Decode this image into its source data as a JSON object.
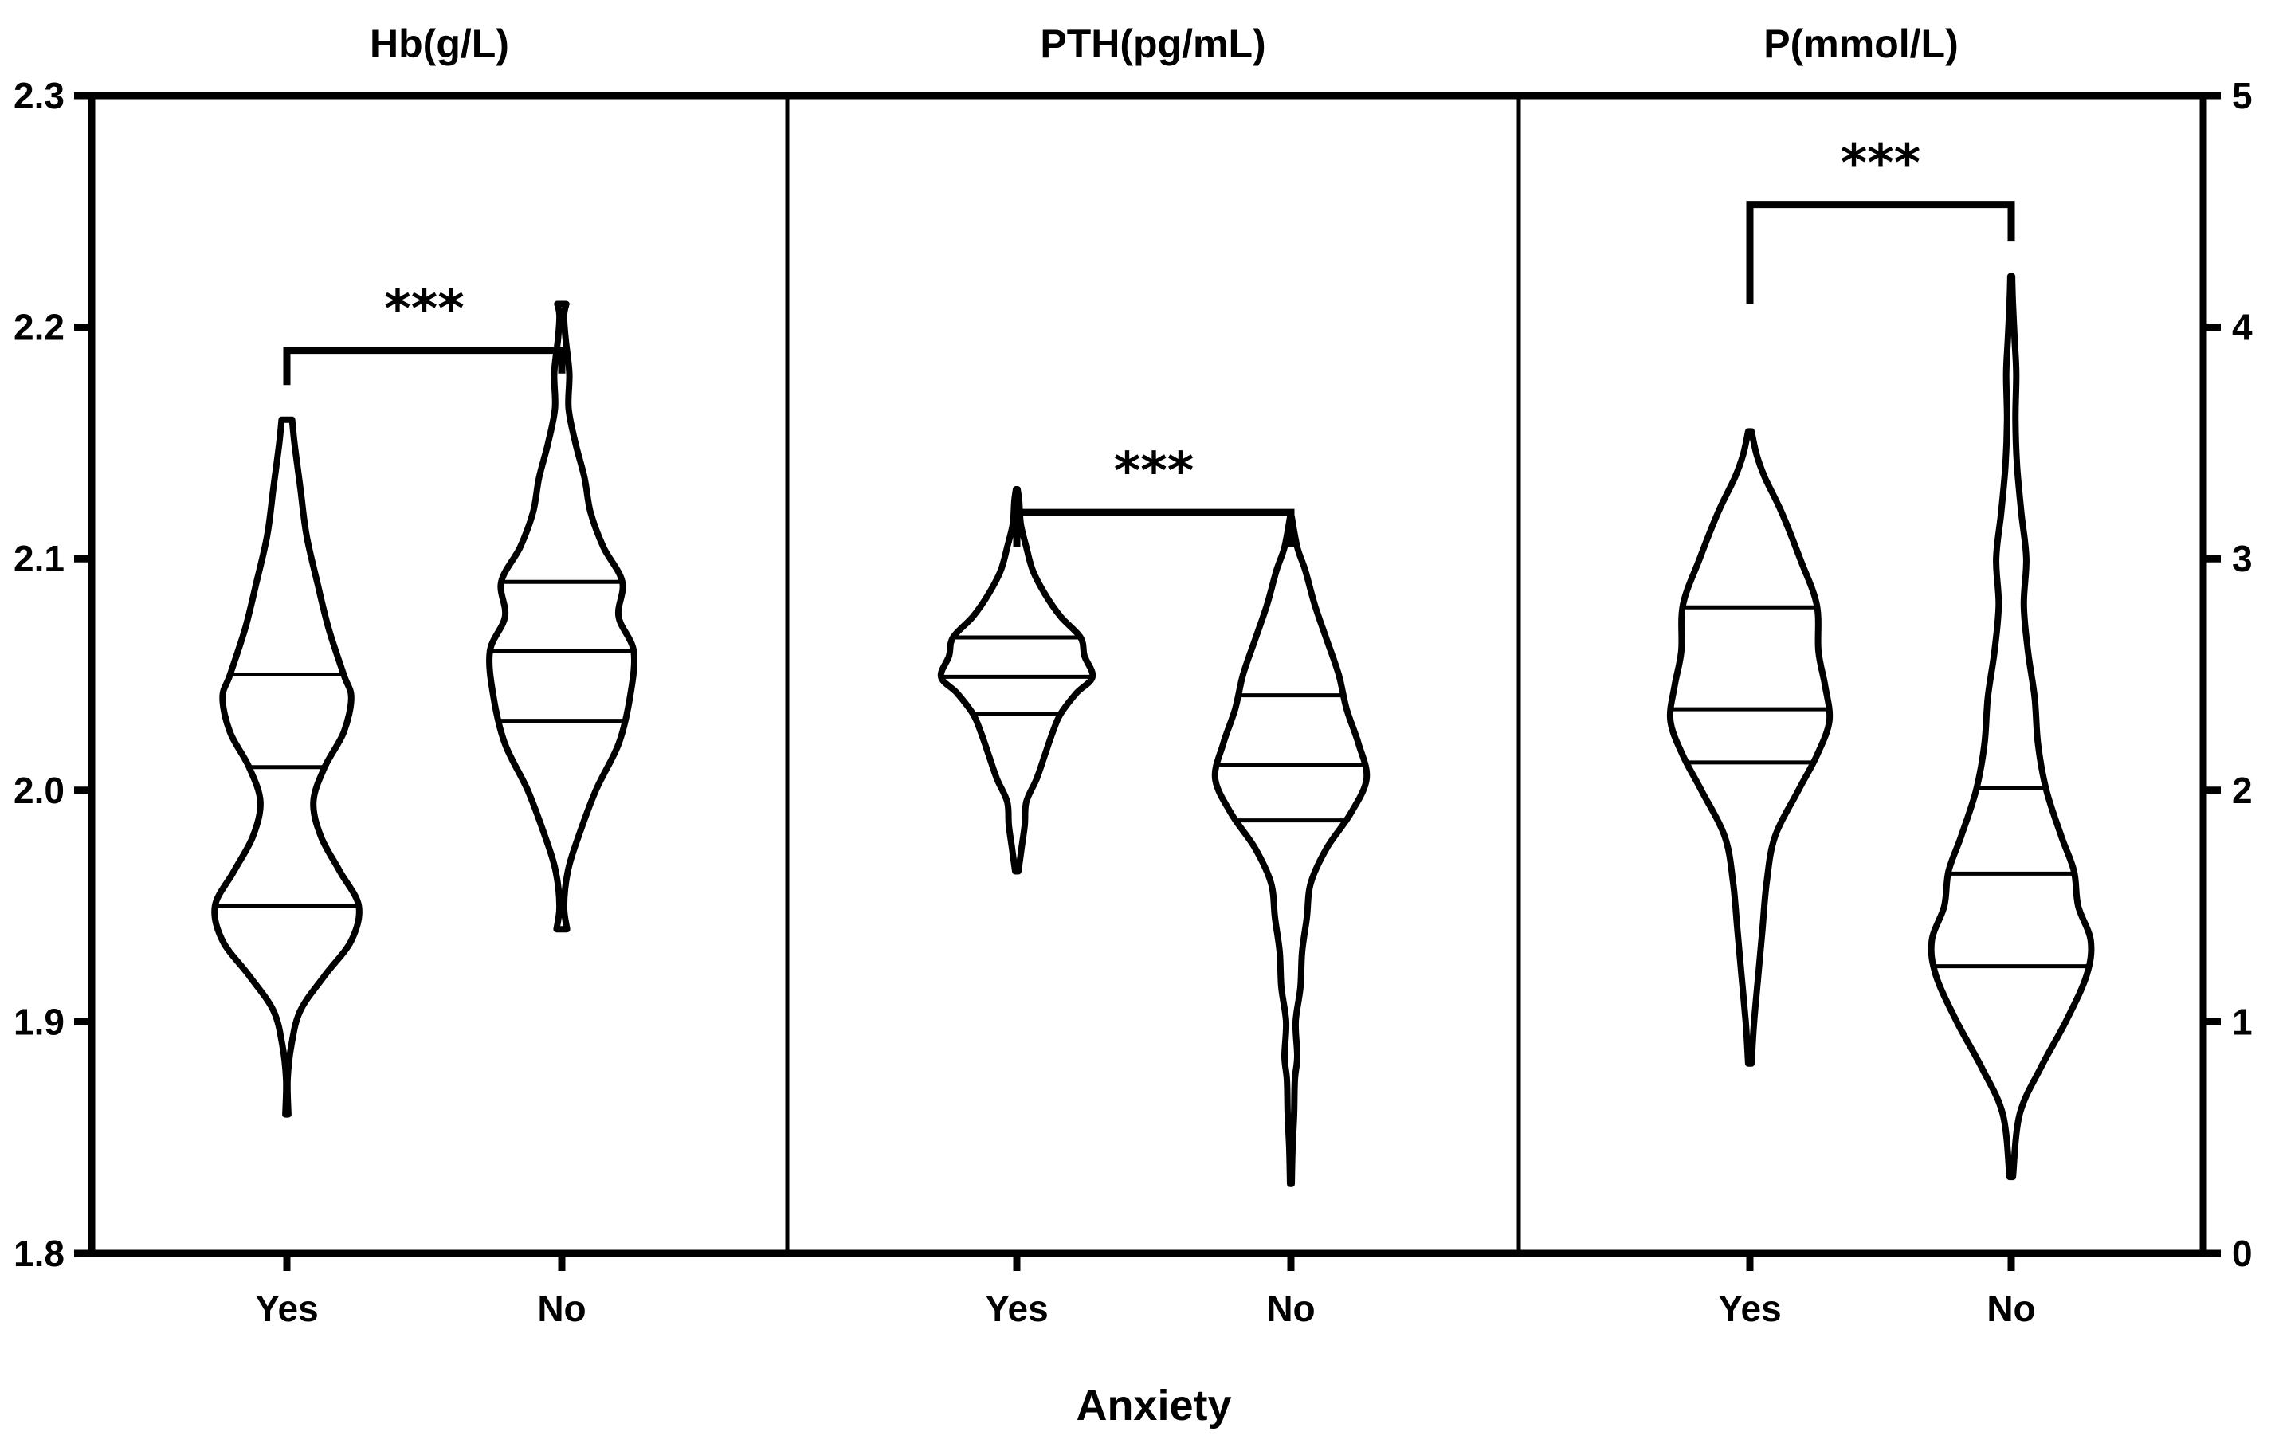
{
  "chart_data": {
    "type": "violin",
    "x_axis_title": "Anxiety",
    "groups": [
      "Yes",
      "No"
    ],
    "left_axis": {
      "min": 1.8,
      "max": 2.3,
      "ticks": [
        "1.8",
        "1.9",
        "2.0",
        "2.1",
        "2.2",
        "2.3"
      ]
    },
    "right_axis": {
      "min": 0,
      "max": 5,
      "ticks": [
        "0",
        "1",
        "2",
        "3",
        "4",
        "5"
      ]
    },
    "panels": [
      {
        "title": "Hb(g/L)",
        "axis": "left",
        "significance": "***",
        "bracket_top": 2.19,
        "bracket_legs": [
          2.175,
          2.18
        ],
        "violins": [
          {
            "group": "Yes",
            "min": 1.86,
            "max": 2.16,
            "q1": 1.95,
            "median": 2.01,
            "q3": 2.05,
            "profile": [
              [
                1.86,
                0.02
              ],
              [
                1.875,
                0.01
              ],
              [
                1.89,
                0.06
              ],
              [
                1.905,
                0.18
              ],
              [
                1.92,
                0.5
              ],
              [
                1.935,
                0.85
              ],
              [
                1.95,
                0.95
              ],
              [
                1.965,
                0.7
              ],
              [
                1.98,
                0.45
              ],
              [
                1.995,
                0.35
              ],
              [
                2.01,
                0.5
              ],
              [
                2.025,
                0.75
              ],
              [
                2.04,
                0.85
              ],
              [
                2.05,
                0.75
              ],
              [
                2.07,
                0.55
              ],
              [
                2.09,
                0.4
              ],
              [
                2.11,
                0.26
              ],
              [
                2.13,
                0.18
              ],
              [
                2.15,
                0.1
              ],
              [
                2.16,
                0.07
              ]
            ]
          },
          {
            "group": "No",
            "min": 1.94,
            "max": 2.21,
            "q1": 2.03,
            "median": 2.06,
            "q3": 2.09,
            "profile": [
              [
                1.94,
                0.07
              ],
              [
                1.95,
                0.03
              ],
              [
                1.965,
                0.08
              ],
              [
                1.98,
                0.22
              ],
              [
                2.0,
                0.45
              ],
              [
                2.02,
                0.75
              ],
              [
                2.04,
                0.9
              ],
              [
                2.06,
                0.95
              ],
              [
                2.075,
                0.75
              ],
              [
                2.09,
                0.8
              ],
              [
                2.105,
                0.55
              ],
              [
                2.12,
                0.38
              ],
              [
                2.135,
                0.3
              ],
              [
                2.15,
                0.18
              ],
              [
                2.165,
                0.09
              ],
              [
                2.18,
                0.1
              ],
              [
                2.195,
                0.05
              ],
              [
                2.205,
                0.03
              ],
              [
                2.21,
                0.06
              ]
            ]
          }
        ]
      },
      {
        "title": "PTH(pg/mL)",
        "axis": "left",
        "significance": "***",
        "bracket_top": 2.12,
        "bracket_legs": [
          2.105,
          2.105
        ],
        "violins": [
          {
            "group": "Yes",
            "min": 1.965,
            "max": 2.13,
            "q1": 2.033,
            "median": 2.049,
            "q3": 2.066,
            "profile": [
              [
                1.965,
                0.02
              ],
              [
                1.975,
                0.06
              ],
              [
                1.985,
                0.1
              ],
              [
                1.995,
                0.12
              ],
              [
                2.005,
                0.25
              ],
              [
                2.015,
                0.35
              ],
              [
                2.025,
                0.45
              ],
              [
                2.033,
                0.55
              ],
              [
                2.042,
                0.75
              ],
              [
                2.049,
                0.95
              ],
              [
                2.058,
                0.85
              ],
              [
                2.066,
                0.8
              ],
              [
                2.075,
                0.55
              ],
              [
                2.085,
                0.35
              ],
              [
                2.095,
                0.2
              ],
              [
                2.105,
                0.12
              ],
              [
                2.115,
                0.05
              ],
              [
                2.125,
                0.03
              ],
              [
                2.13,
                0.01
              ]
            ]
          },
          {
            "group": "No",
            "min": 1.83,
            "max": 2.118,
            "q1": 1.987,
            "median": 2.011,
            "q3": 2.041,
            "profile": [
              [
                1.83,
                0.01
              ],
              [
                1.845,
                0.02
              ],
              [
                1.86,
                0.04
              ],
              [
                1.875,
                0.05
              ],
              [
                1.885,
                0.08
              ],
              [
                1.9,
                0.06
              ],
              [
                1.915,
                0.12
              ],
              [
                1.93,
                0.14
              ],
              [
                1.945,
                0.2
              ],
              [
                1.96,
                0.25
              ],
              [
                1.975,
                0.45
              ],
              [
                1.99,
                0.75
              ],
              [
                2.005,
                0.95
              ],
              [
                2.02,
                0.85
              ],
              [
                2.035,
                0.7
              ],
              [
                2.05,
                0.6
              ],
              [
                2.065,
                0.45
              ],
              [
                2.08,
                0.3
              ],
              [
                2.095,
                0.18
              ],
              [
                2.105,
                0.08
              ],
              [
                2.118,
                0.01
              ]
            ]
          }
        ]
      },
      {
        "title": "P(mmol/L)",
        "axis": "right",
        "significance": "***",
        "bracket_top": 4.53,
        "bracket_legs": [
          4.1,
          4.37
        ],
        "violins": [
          {
            "group": "Yes",
            "min": 0.82,
            "max": 3.55,
            "q1": 2.12,
            "median": 2.35,
            "q3": 2.79,
            "profile": [
              [
                0.82,
                0.02
              ],
              [
                1.0,
                0.05
              ],
              [
                1.2,
                0.1
              ],
              [
                1.4,
                0.15
              ],
              [
                1.6,
                0.2
              ],
              [
                1.8,
                0.3
              ],
              [
                2.0,
                0.58
              ],
              [
                2.15,
                0.8
              ],
              [
                2.3,
                0.95
              ],
              [
                2.45,
                0.9
              ],
              [
                2.6,
                0.82
              ],
              [
                2.8,
                0.8
              ],
              [
                3.0,
                0.6
              ],
              [
                3.2,
                0.38
              ],
              [
                3.35,
                0.18
              ],
              [
                3.45,
                0.08
              ],
              [
                3.55,
                0.02
              ]
            ]
          },
          {
            "group": "No",
            "min": 0.33,
            "max": 4.22,
            "q1": 1.24,
            "median": 1.64,
            "q3": 2.01,
            "profile": [
              [
                0.33,
                0.02
              ],
              [
                0.6,
                0.1
              ],
              [
                0.8,
                0.35
              ],
              [
                1.0,
                0.65
              ],
              [
                1.2,
                0.9
              ],
              [
                1.35,
                0.95
              ],
              [
                1.5,
                0.8
              ],
              [
                1.65,
                0.75
              ],
              [
                1.8,
                0.6
              ],
              [
                2.0,
                0.42
              ],
              [
                2.2,
                0.32
              ],
              [
                2.4,
                0.28
              ],
              [
                2.6,
                0.2
              ],
              [
                2.8,
                0.15
              ],
              [
                3.0,
                0.18
              ],
              [
                3.2,
                0.12
              ],
              [
                3.4,
                0.07
              ],
              [
                3.6,
                0.05
              ],
              [
                3.8,
                0.06
              ],
              [
                3.95,
                0.04
              ],
              [
                4.1,
                0.02
              ],
              [
                4.22,
                0.01
              ]
            ]
          }
        ]
      }
    ]
  }
}
